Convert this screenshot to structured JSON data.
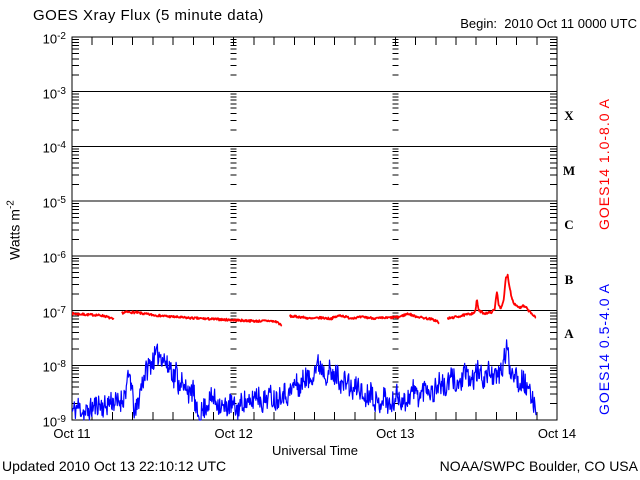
{
  "footer": {
    "updated": "Updated 2010 Oct 13 22:10:12 UTC",
    "source": "NOAA/SWPC Boulder, CO USA"
  },
  "chart_data": {
    "type": "line",
    "title": "GOES Xray Flux (5 minute data)",
    "begin_label": "Begin:  2010 Oct 11 0000 UTC",
    "xlabel": "Universal Time",
    "ylabel": "Watts m^-2",
    "ylabel_text": "Watts m",
    "ylabel_exp": "-2",
    "x_ticks": [
      "Oct 11",
      "Oct 12",
      "Oct 13",
      "Oct 14"
    ],
    "x_range_days": 3,
    "minor_tick_hours": 3,
    "grid_days": [
      1,
      2
    ],
    "y_exponents": [
      -2,
      -3,
      -4,
      -5,
      -6,
      -7,
      -8,
      -9
    ],
    "ylim": [
      1e-09,
      0.01
    ],
    "flare_classes": [
      "X",
      "M",
      "C",
      "B",
      "A"
    ],
    "sample_step_days": 0.0035,
    "series": [
      {
        "name": "GOES14 1.0-8.0 A",
        "color": "#ff0000",
        "seed": 7,
        "noise_log": 0.02,
        "gaps": [
          [
            0.262,
            0.306
          ],
          [
            1.301,
            1.345
          ],
          [
            2.272,
            2.318
          ]
        ],
        "anchors": [
          [
            0.0,
            8.8e-08
          ],
          [
            0.05,
            8.6e-08
          ],
          [
            0.1,
            8.4e-08
          ],
          [
            0.15,
            8.3e-08
          ],
          [
            0.2,
            8e-08
          ],
          [
            0.23,
            7.4e-08
          ],
          [
            0.25,
            7e-08
          ],
          [
            0.262,
            6.6e-08
          ],
          [
            0.306,
            9e-08
          ],
          [
            0.34,
            9.4e-08
          ],
          [
            0.4,
            9.2e-08
          ],
          [
            0.46,
            8.6e-08
          ],
          [
            0.52,
            8.2e-08
          ],
          [
            0.6,
            7.8e-08
          ],
          [
            0.7,
            7.4e-08
          ],
          [
            0.82,
            7.1e-08
          ],
          [
            0.95,
            6.8e-08
          ],
          [
            1.05,
            6.6e-08
          ],
          [
            1.15,
            6.4e-08
          ],
          [
            1.22,
            6.5e-08
          ],
          [
            1.27,
            6.2e-08
          ],
          [
            1.301,
            5.1e-08
          ],
          [
            1.345,
            7.9e-08
          ],
          [
            1.42,
            7.6e-08
          ],
          [
            1.48,
            7.1e-08
          ],
          [
            1.54,
            7.4e-08
          ],
          [
            1.6,
            7.1e-08
          ],
          [
            1.66,
            8.2e-08
          ],
          [
            1.72,
            7.3e-08
          ],
          [
            1.8,
            7.6e-08
          ],
          [
            1.88,
            7.2e-08
          ],
          [
            1.96,
            7.4e-08
          ],
          [
            2.02,
            7.6e-08
          ],
          [
            2.08,
            8.8e-08
          ],
          [
            2.12,
            7.9e-08
          ],
          [
            2.17,
            7.4e-08
          ],
          [
            2.22,
            7e-08
          ],
          [
            2.26,
            6.4e-08
          ],
          [
            2.272,
            5.6e-08
          ],
          [
            2.318,
            7.1e-08
          ],
          [
            2.38,
            7.7e-08
          ],
          [
            2.43,
            8.3e-08
          ],
          [
            2.47,
            8.8e-08
          ],
          [
            2.495,
            9.5e-08
          ],
          [
            2.505,
            1.65e-07
          ],
          [
            2.515,
            1e-07
          ],
          [
            2.55,
            8.9e-08
          ],
          [
            2.59,
            9.2e-08
          ],
          [
            2.615,
            1.05e-07
          ],
          [
            2.628,
            2.3e-07
          ],
          [
            2.64,
            1.25e-07
          ],
          [
            2.655,
            1.1e-07
          ],
          [
            2.67,
            1.5e-07
          ],
          [
            2.683,
            3.9e-07
          ],
          [
            2.695,
            4.4e-07
          ],
          [
            2.705,
            2.9e-07
          ],
          [
            2.72,
            1.7e-07
          ],
          [
            2.735,
            1.35e-07
          ],
          [
            2.755,
            1.2e-07
          ],
          [
            2.775,
            1.12e-07
          ],
          [
            2.79,
            1.22e-07
          ],
          [
            2.81,
            1.12e-07
          ],
          [
            2.83,
            9.6e-08
          ],
          [
            2.85,
            8.4e-08
          ],
          [
            2.87,
            7.2e-08
          ]
        ]
      },
      {
        "name": "GOES14 0.5-4.0 A",
        "color": "#0000ff",
        "seed": 11,
        "noise_log": 0.21,
        "floor": 1e-09,
        "anchors": [
          [
            0.0,
            1.4e-09
          ],
          [
            0.04,
            1.8e-09
          ],
          [
            0.08,
            1.3e-09
          ],
          [
            0.12,
            1.6e-09
          ],
          [
            0.16,
            2e-09
          ],
          [
            0.2,
            1.7e-09
          ],
          [
            0.24,
            2.3e-09
          ],
          [
            0.28,
            2e-09
          ],
          [
            0.32,
            2.6e-09
          ],
          [
            0.345,
            5e-09
          ],
          [
            0.36,
            6.8e-09
          ],
          [
            0.372,
            3e-09
          ],
          [
            0.39,
            1.2e-09
          ],
          [
            0.41,
            2.2e-09
          ],
          [
            0.43,
            4.5e-09
          ],
          [
            0.45,
            7e-09
          ],
          [
            0.48,
            1.05e-08
          ],
          [
            0.51,
            1.35e-08
          ],
          [
            0.535,
            1.6e-08
          ],
          [
            0.555,
            1.5e-08
          ],
          [
            0.575,
            1.25e-08
          ],
          [
            0.59,
            9e-09
          ],
          [
            0.61,
            1.05e-08
          ],
          [
            0.63,
            5.5e-09
          ],
          [
            0.645,
            8.5e-09
          ],
          [
            0.66,
            4e-09
          ],
          [
            0.675,
            6e-09
          ],
          [
            0.69,
            3.2e-09
          ],
          [
            0.71,
            4.8e-09
          ],
          [
            0.73,
            2.4e-09
          ],
          [
            0.75,
            4.2e-09
          ],
          [
            0.765,
            1.4e-09
          ],
          [
            0.79,
            1.2e-09
          ],
          [
            0.83,
            1.9e-09
          ],
          [
            0.87,
            2.6e-09
          ],
          [
            0.9,
            2.1e-09
          ],
          [
            0.94,
            1.6e-09
          ],
          [
            0.98,
            2e-09
          ],
          [
            1.02,
            1.5e-09
          ],
          [
            1.06,
            2.3e-09
          ],
          [
            1.1,
            1.8e-09
          ],
          [
            1.14,
            3.2e-09
          ],
          [
            1.18,
            2.1e-09
          ],
          [
            1.22,
            2.9e-09
          ],
          [
            1.26,
            2.3e-09
          ],
          [
            1.3,
            3.4e-09
          ],
          [
            1.34,
            2.8e-09
          ],
          [
            1.38,
            4.8e-09
          ],
          [
            1.41,
            3.8e-09
          ],
          [
            1.44,
            6.4e-09
          ],
          [
            1.47,
            5.2e-09
          ],
          [
            1.5,
            8.6e-09
          ],
          [
            1.525,
            1.05e-08
          ],
          [
            1.55,
            9e-09
          ],
          [
            1.57,
            6.8e-09
          ],
          [
            1.59,
            8.2e-09
          ],
          [
            1.615,
            5.6e-09
          ],
          [
            1.64,
            7.2e-09
          ],
          [
            1.67,
            4.2e-09
          ],
          [
            1.7,
            5.6e-09
          ],
          [
            1.73,
            3.2e-09
          ],
          [
            1.77,
            4.4e-09
          ],
          [
            1.81,
            2.4e-09
          ],
          [
            1.85,
            3.6e-09
          ],
          [
            1.89,
            1.8e-09
          ],
          [
            1.93,
            2.8e-09
          ],
          [
            1.97,
            1.7e-09
          ],
          [
            2.01,
            2.9e-09
          ],
          [
            2.06,
            2.1e-09
          ],
          [
            2.11,
            3.6e-09
          ],
          [
            2.15,
            2.6e-09
          ],
          [
            2.19,
            4.4e-09
          ],
          [
            2.23,
            3e-09
          ],
          [
            2.27,
            5e-09
          ],
          [
            2.31,
            3.6e-09
          ],
          [
            2.35,
            6.2e-09
          ],
          [
            2.39,
            4.2e-09
          ],
          [
            2.43,
            6.8e-09
          ],
          [
            2.47,
            5e-09
          ],
          [
            2.51,
            7.6e-09
          ],
          [
            2.55,
            5.6e-09
          ],
          [
            2.59,
            8.4e-09
          ],
          [
            2.62,
            5.4e-09
          ],
          [
            2.65,
            7.4e-09
          ],
          [
            2.668,
            1.05e-08
          ],
          [
            2.69,
            2.1e-08
          ],
          [
            2.7,
            1.35e-08
          ],
          [
            2.715,
            7.4e-09
          ],
          [
            2.74,
            8.2e-09
          ],
          [
            2.765,
            4.6e-09
          ],
          [
            2.79,
            5.6e-09
          ],
          [
            2.815,
            3.4e-09
          ],
          [
            2.84,
            2.6e-09
          ],
          [
            2.87,
            1.9e-09
          ]
        ]
      }
    ]
  }
}
